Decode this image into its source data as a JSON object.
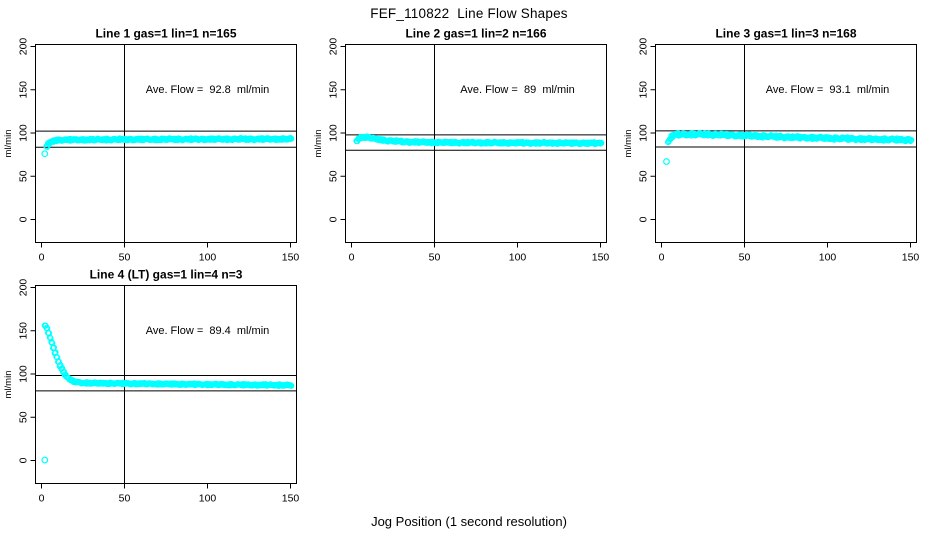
{
  "title": "FEF_110822  Line Flow Shapes",
  "xlabel": "Jog Position (1 second resolution)",
  "colors": {
    "points": "#00FFFF",
    "lines": "#000000",
    "text": "#000000",
    "background": "#FFFFFF"
  },
  "chart_data": [
    {
      "type": "scatter",
      "title": "Line 1 gas=1 lin=1 n=165",
      "ylabel": "ml/min",
      "annotation": {
        "text": "Ave. Flow =  92.8  ml/min",
        "x": 100,
        "y": 150
      },
      "ave_flow": 92.8,
      "n": 165,
      "xlim": [
        0,
        150
      ],
      "ylim": [
        0,
        200
      ],
      "xticks": [
        0,
        50,
        100,
        150
      ],
      "yticks": [
        0,
        50,
        100,
        150,
        200
      ],
      "vline_x": 50,
      "hlines": [
        102.1,
        83.5
      ],
      "outliers": [
        [
          2,
          76
        ]
      ],
      "band_anchors": [
        [
          3,
          84.5
        ],
        [
          4,
          87
        ],
        [
          5,
          89
        ],
        [
          6,
          90
        ],
        [
          8,
          91.5
        ],
        [
          12,
          92
        ],
        [
          50,
          92.5
        ],
        [
          100,
          92.8
        ],
        [
          150,
          93
        ]
      ],
      "jitter": 1.2,
      "grid": {
        "row": 0,
        "col": 0
      }
    },
    {
      "type": "scatter",
      "title": "Line 2 gas=1 lin=2 n=166",
      "ylabel": "ml/min",
      "annotation": {
        "text": "Ave. Flow =  89  ml/min",
        "x": 100,
        "y": 150
      },
      "ave_flow": 89,
      "n": 166,
      "xlim": [
        0,
        150
      ],
      "ylim": [
        0,
        200
      ],
      "xticks": [
        0,
        50,
        100,
        150
      ],
      "yticks": [
        0,
        50,
        100,
        150,
        200
      ],
      "vline_x": 50,
      "hlines": [
        97.9,
        80.1
      ],
      "outliers": [],
      "band_anchors": [
        [
          3,
          90.5
        ],
        [
          4,
          93
        ],
        [
          5,
          94.5
        ],
        [
          7,
          95.2
        ],
        [
          10,
          94.8
        ],
        [
          14,
          93
        ],
        [
          20,
          91.5
        ],
        [
          30,
          90
        ],
        [
          45,
          89.2
        ],
        [
          70,
          88.8
        ],
        [
          110,
          88.5
        ],
        [
          150,
          88.2
        ]
      ],
      "jitter": 1.2,
      "grid": {
        "row": 0,
        "col": 1
      }
    },
    {
      "type": "scatter",
      "title": "Line 3 gas=1 lin=3 n=168",
      "ylabel": "ml/min",
      "annotation": {
        "text": "Ave. Flow =  93.1  ml/min",
        "x": 100,
        "y": 150
      },
      "ave_flow": 93.1,
      "n": 168,
      "xlim": [
        0,
        150
      ],
      "ylim": [
        0,
        200
      ],
      "xticks": [
        0,
        50,
        100,
        150
      ],
      "yticks": [
        0,
        50,
        100,
        150,
        200
      ],
      "vline_x": 50,
      "hlines": [
        102.4,
        83.8
      ],
      "outliers": [
        [
          3,
          67
        ]
      ],
      "band_anchors": [
        [
          4,
          90
        ],
        [
          5,
          93.5
        ],
        [
          6,
          96
        ],
        [
          8,
          97.8
        ],
        [
          12,
          98.5
        ],
        [
          30,
          98.2
        ],
        [
          50,
          97
        ],
        [
          75,
          95.3
        ],
        [
          100,
          94
        ],
        [
          125,
          92.8
        ],
        [
          150,
          92
        ]
      ],
      "jitter": 1.6,
      "grid": {
        "row": 0,
        "col": 2
      }
    },
    {
      "type": "scatter",
      "title": "Line 4 (LT) gas=1 lin=4 n=3",
      "ylabel": "ml/min",
      "annotation": {
        "text": "Ave. Flow =  89.4  ml/min",
        "x": 100,
        "y": 150
      },
      "ave_flow": 89.4,
      "n": 3,
      "xlim": [
        0,
        150
      ],
      "ylim": [
        0,
        200
      ],
      "xticks": [
        0,
        50,
        100,
        150
      ],
      "yticks": [
        0,
        50,
        100,
        150,
        200
      ],
      "vline_x": 50,
      "hlines": [
        98.3,
        80.5
      ],
      "outliers": [
        [
          2,
          0.5
        ]
      ],
      "band_anchors": [
        [
          2,
          155.5
        ],
        [
          3,
          152.5
        ],
        [
          4,
          147.5
        ],
        [
          5,
          142
        ],
        [
          6,
          136
        ],
        [
          7,
          130
        ],
        [
          8,
          124.5
        ],
        [
          9,
          119.5
        ],
        [
          10,
          114.5
        ],
        [
          11,
          110
        ],
        [
          12,
          106
        ],
        [
          13,
          102.5
        ],
        [
          14,
          99.5
        ],
        [
          15,
          97
        ],
        [
          16,
          95
        ],
        [
          17,
          93.5
        ],
        [
          18,
          92.3
        ],
        [
          19,
          91.5
        ],
        [
          20,
          91
        ],
        [
          22,
          90.3
        ],
        [
          25,
          89.8
        ],
        [
          30,
          89.4
        ],
        [
          50,
          89
        ],
        [
          80,
          88.3
        ],
        [
          110,
          87.7
        ],
        [
          150,
          87
        ]
      ],
      "jitter": 1.0,
      "grid": {
        "row": 1,
        "col": 0
      }
    }
  ]
}
